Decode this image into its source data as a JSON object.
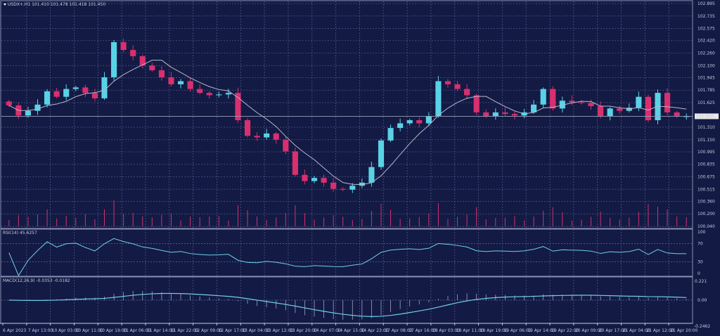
{
  "header": {
    "symbol_label": "USDX+,H1  101.410 101.478 101.418 101.450"
  },
  "rsi_label": "RSI(14) 45.6257",
  "macd_label": "MACD(12,26,9) -0.0353 -0.0182",
  "colors": {
    "background": "#131a44",
    "grid": "#4f5688",
    "up": "#5ad2e6",
    "down": "#d8306e",
    "ma": "#b8b8c8",
    "indicator": "#6fd0e8",
    "current_price_bg": "#e8e8e8"
  },
  "chart_data": {
    "type": "candlestick",
    "price_ticks": [
      "102.895",
      "102.735",
      "102.575",
      "102.420",
      "102.260",
      "102.100",
      "101.945",
      "101.785",
      "101.625",
      "101.310",
      "101.150",
      "100.995",
      "100.835",
      "100.675",
      "100.515",
      "100.360",
      "100.200",
      "100.040"
    ],
    "current_price": "101.450",
    "ylim": [
      100.04,
      102.895
    ],
    "rsi_ticks": [
      "100",
      "70",
      "30",
      "0"
    ],
    "macd_ticks": [
      "0.221",
      "0.00",
      "-0.2462"
    ],
    "time_ticks": [
      "6 Apr 2023",
      "7 Apr 13:00",
      "10 Apr 03:00",
      "10 Apr 11:00",
      "10 Apr 19:00",
      "11 Apr 06:00",
      "11 Apr 14:00",
      "11 Apr 22:00",
      "12 Apr 09:00",
      "12 Apr 17:00",
      "13 Apr 04:00",
      "13 Apr 12:00",
      "13 Apr 20:00",
      "14 Apr 07:00",
      "14 Apr 15:00",
      "14 Apr 23:00",
      "17 Apr 08:00",
      "17 Apr 16:00",
      "18 Apr 03:00",
      "18 Apr 11:00",
      "18 Apr 19:00",
      "19 Apr 06:00",
      "19 Apr 14:00",
      "19 Apr 22:00",
      "20 Apr 09:00",
      "20 Apr 17:00",
      "21 Apr 04:00",
      "21 Apr 12:00",
      "21 Apr 20:00"
    ],
    "closes": [
      101.59,
      101.46,
      101.52,
      101.6,
      101.77,
      101.7,
      101.8,
      101.82,
      101.75,
      101.68,
      101.95,
      102.4,
      102.3,
      102.22,
      102.1,
      102.04,
      101.95,
      101.86,
      101.9,
      101.8,
      101.75,
      101.72,
      101.73,
      101.75,
      101.4,
      101.2,
      101.18,
      101.23,
      101.15,
      101.0,
      100.7,
      100.62,
      100.66,
      100.6,
      100.52,
      100.51,
      100.56,
      100.6,
      100.8,
      101.14,
      101.3,
      101.36,
      101.4,
      101.36,
      101.45,
      101.9,
      101.86,
      101.8,
      101.72,
      101.5,
      101.45,
      101.5,
      101.48,
      101.46,
      101.5,
      101.6,
      101.8,
      101.55,
      101.65,
      101.63,
      101.62,
      101.58,
      101.45,
      101.55,
      101.52,
      101.56,
      101.7,
      101.4,
      101.75,
      101.5,
      101.45,
      101.45
    ]
  }
}
